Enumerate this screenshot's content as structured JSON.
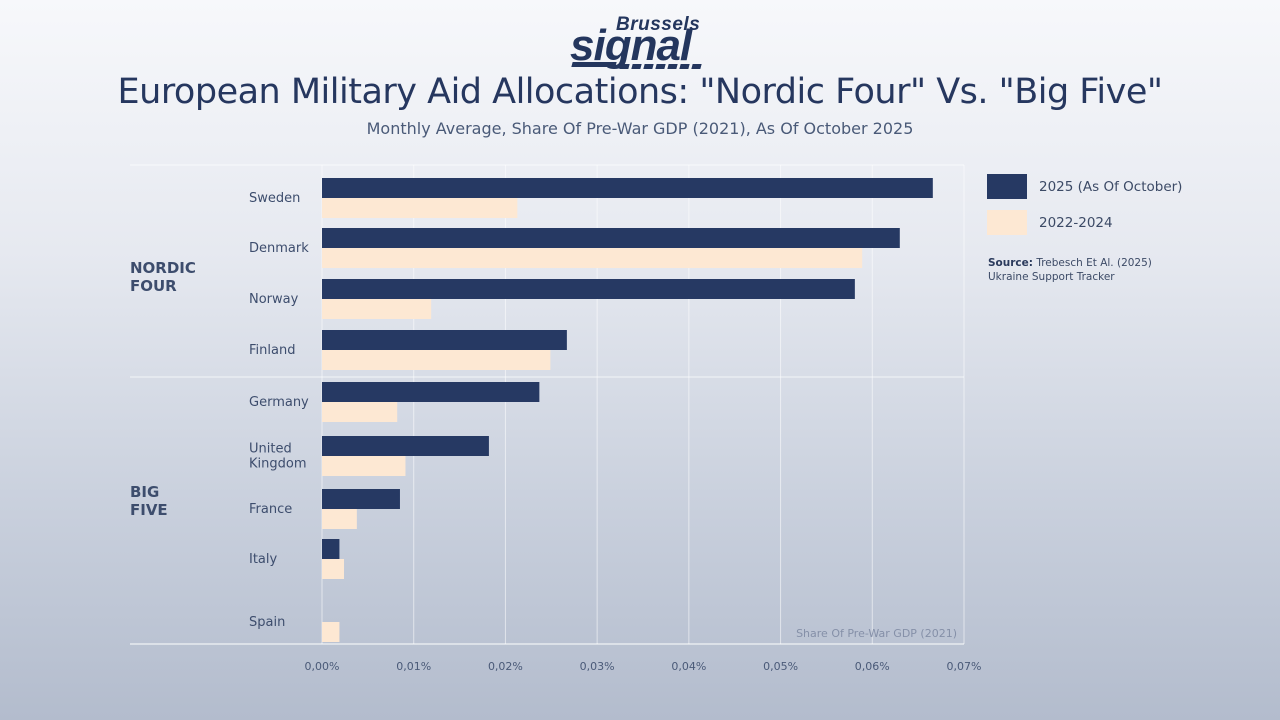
{
  "brand": {
    "top": "Brussels",
    "main": "signal"
  },
  "header": {
    "title": "European Military Aid Allocations: \"Nordic Four\" Vs. \"Big Five\"",
    "subtitle": "Monthly Average, Share Of Pre-War GDP (2021), As Of October 2025"
  },
  "legend": {
    "items": [
      {
        "label": "2025 (As Of October)",
        "color": "#263963"
      },
      {
        "label": "2022-2024",
        "color": "#fde8d3"
      }
    ]
  },
  "source": {
    "label": "Source:",
    "text": "Trebesch Et Al. (2025)",
    "text2": "Ukraine Support Tracker"
  },
  "chart_data": {
    "type": "bar",
    "orientation": "horizontal",
    "title": "European Military Aid Allocations: \"Nordic Four\" Vs. \"Big Five\"",
    "subtitle": "Monthly Average, Share Of Pre-War GDP (2021), As Of October 2025",
    "xlabel": "Share Of Pre-War GDP (2021)",
    "ylabel": "",
    "xlim": [
      0,
      0.07
    ],
    "xticks": [
      0,
      0.01,
      0.02,
      0.03,
      0.04,
      0.05,
      0.06,
      0.07
    ],
    "xtick_labels": [
      "0,00%",
      "0,01%",
      "0,02%",
      "0,03%",
      "0,04%",
      "0,05%",
      "0,06%",
      "0,07%"
    ],
    "unit": "% of pre-war GDP",
    "grid": true,
    "legend_position": "right",
    "groups": [
      {
        "label_lines": [
          "NORDIC",
          "FOUR"
        ],
        "categories": [
          "Sweden",
          "Denmark",
          "Norway",
          "Finland"
        ]
      },
      {
        "label_lines": [
          "BIG",
          "FIVE"
        ],
        "categories": [
          "Germany",
          "United Kingdom",
          "France",
          "Italy",
          "Spain"
        ]
      }
    ],
    "categories": [
      "Sweden",
      "Denmark",
      "Norway",
      "Finland",
      "Germany",
      "United Kingdom",
      "France",
      "Italy",
      "Spain"
    ],
    "category_label_lines": [
      [
        "Sweden"
      ],
      [
        "Denmark"
      ],
      [
        "Norway"
      ],
      [
        "Finland"
      ],
      [
        "Germany"
      ],
      [
        "United",
        "Kingdom"
      ],
      [
        "France"
      ],
      [
        "Italy"
      ],
      [
        "Spain"
      ]
    ],
    "series": [
      {
        "name": "2025 (As Of October)",
        "color": "#263963",
        "values": [
          0.0666,
          0.063,
          0.0581,
          0.0267,
          0.0237,
          0.0182,
          0.0085,
          0.0019,
          0
        ]
      },
      {
        "name": "2022-2024",
        "color": "#fde8d3",
        "values": [
          0.0213,
          0.0589,
          0.0119,
          0.0249,
          0.0082,
          0.0091,
          0.0038,
          0.0024,
          0.0019
        ]
      }
    ]
  }
}
